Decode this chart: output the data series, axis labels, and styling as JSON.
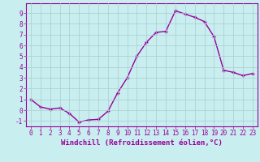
{
  "x": [
    0,
    1,
    2,
    3,
    4,
    5,
    6,
    7,
    8,
    9,
    10,
    11,
    12,
    13,
    14,
    15,
    16,
    17,
    18,
    19,
    20,
    21,
    22,
    23
  ],
  "y": [
    1.0,
    0.3,
    0.1,
    0.2,
    -0.3,
    -1.1,
    -0.9,
    -0.85,
    -0.1,
    1.6,
    3.0,
    5.0,
    6.3,
    7.2,
    7.3,
    9.2,
    8.9,
    8.6,
    8.2,
    6.8,
    3.7,
    3.5,
    3.2,
    3.4
  ],
  "line_color": "#990099",
  "marker": "+",
  "bg_color": "#c8eef0",
  "grid_color": "#aacccc",
  "xlabel": "Windchill (Refroidissement éolien,°C)",
  "xlim": [
    -0.5,
    23.5
  ],
  "ylim": [
    -1.5,
    9.9
  ],
  "yticks": [
    -1,
    0,
    1,
    2,
    3,
    4,
    5,
    6,
    7,
    8,
    9
  ],
  "xticks": [
    0,
    1,
    2,
    3,
    4,
    5,
    6,
    7,
    8,
    9,
    10,
    11,
    12,
    13,
    14,
    15,
    16,
    17,
    18,
    19,
    20,
    21,
    22,
    23
  ],
  "font_color": "#990099",
  "font_size": 5.5,
  "xlabel_fontsize": 6.5,
  "linewidth": 1.0,
  "markersize": 3
}
